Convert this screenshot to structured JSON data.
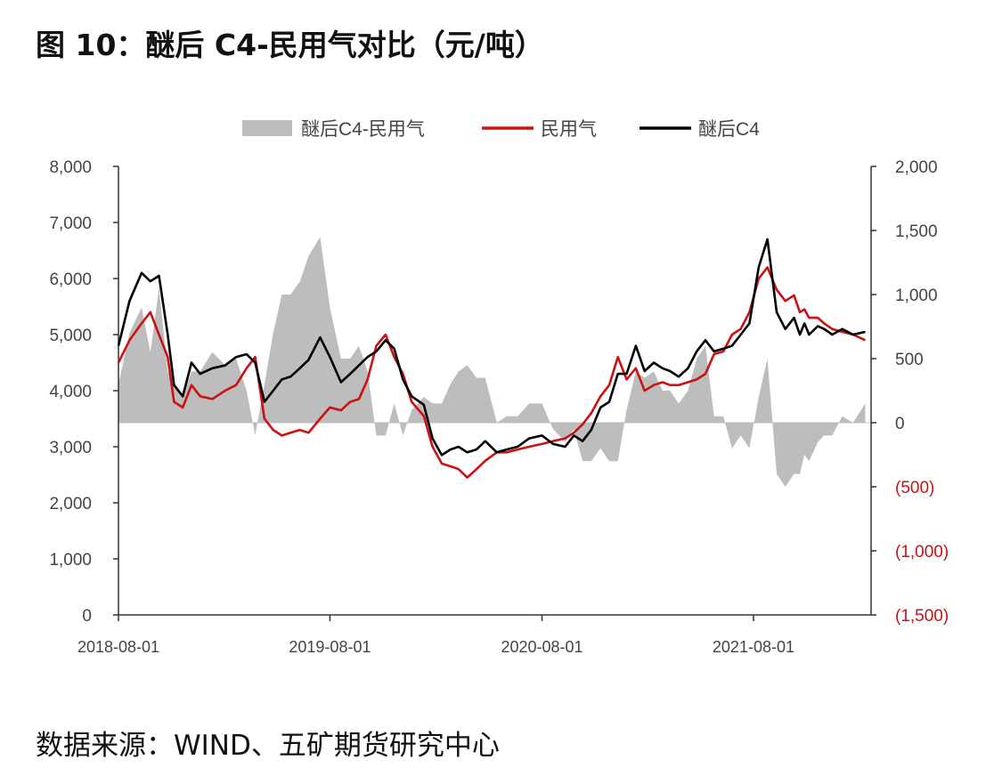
{
  "figure": {
    "title": "图 10：醚后 C4-民用气对比（元/吨）",
    "source": "数据来源：WIND、五矿期货研究中心"
  },
  "chart_data": {
    "type": "line",
    "left_axis": {
      "range": [
        0,
        8000
      ],
      "ticks": [
        "0",
        "1,000",
        "2,000",
        "3,000",
        "4,000",
        "5,000",
        "6,000",
        "7,000",
        "8,000"
      ]
    },
    "right_axis": {
      "range": [
        -1500,
        2000
      ],
      "ticks": [
        "(1,500)",
        "(1,000)",
        "(500)",
        "0",
        "500",
        "1,000",
        "1,500",
        "2,000"
      ],
      "negative_tick_color": "#cc1111"
    },
    "x_axis": {
      "range": [
        "2018-08-01",
        "2022-02-20"
      ],
      "ticks": [
        "2018-08-01",
        "2019-08-01",
        "2020-08-01",
        "2021-08-01"
      ]
    },
    "legend": {
      "position": "top",
      "items": [
        {
          "label": "醚后C4-民用气",
          "type": "area",
          "color": "#bdbdbd"
        },
        {
          "label": "民用气",
          "type": "line",
          "color": "#cc1111"
        },
        {
          "label": "醚后C4",
          "type": "line",
          "color": "#000000"
        }
      ]
    },
    "series": [
      {
        "name": "醚后C4",
        "axis": "left",
        "color": "#000000",
        "x": [
          "2018-08-01",
          "2018-08-20",
          "2018-09-10",
          "2018-09-25",
          "2018-10-10",
          "2018-10-25",
          "2018-11-05",
          "2018-11-20",
          "2018-12-05",
          "2018-12-20",
          "2019-01-10",
          "2019-02-01",
          "2019-02-20",
          "2019-03-10",
          "2019-03-25",
          "2019-04-10",
          "2019-04-25",
          "2019-05-10",
          "2019-05-25",
          "2019-06-10",
          "2019-06-25",
          "2019-07-15",
          "2019-08-01",
          "2019-08-20",
          "2019-09-05",
          "2019-09-20",
          "2019-10-05",
          "2019-10-20",
          "2019-11-05",
          "2019-11-20",
          "2019-12-05",
          "2019-12-20",
          "2020-01-10",
          "2020-01-25",
          "2020-02-10",
          "2020-02-25",
          "2020-03-10",
          "2020-03-25",
          "2020-04-10",
          "2020-04-25",
          "2020-05-15",
          "2020-06-01",
          "2020-06-20",
          "2020-07-10",
          "2020-08-01",
          "2020-08-20",
          "2020-09-10",
          "2020-09-25",
          "2020-10-10",
          "2020-10-25",
          "2020-11-10",
          "2020-11-25",
          "2020-12-10",
          "2020-12-25",
          "2021-01-10",
          "2021-01-25",
          "2021-02-10",
          "2021-02-25",
          "2021-03-10",
          "2021-03-25",
          "2021-04-10",
          "2021-04-25",
          "2021-05-10",
          "2021-05-25",
          "2021-06-10",
          "2021-06-25",
          "2021-07-10",
          "2021-07-25",
          "2021-08-10",
          "2021-08-25",
          "2021-09-10",
          "2021-09-25",
          "2021-10-10",
          "2021-10-20",
          "2021-10-28",
          "2021-11-05",
          "2021-11-20",
          "2021-12-01",
          "2021-12-15",
          "2022-01-01",
          "2022-01-20",
          "2022-02-10"
        ],
        "values": [
          4800,
          5600,
          6100,
          5950,
          6050,
          5000,
          4100,
          3900,
          4500,
          4300,
          4400,
          4450,
          4600,
          4650,
          4500,
          3800,
          4000,
          4200,
          4250,
          4400,
          4550,
          4950,
          4600,
          4150,
          4300,
          4450,
          4600,
          4700,
          4900,
          4750,
          4200,
          3900,
          3750,
          3150,
          2850,
          2950,
          3000,
          2900,
          2950,
          3100,
          2900,
          2950,
          3000,
          3150,
          3200,
          3050,
          3000,
          3200,
          3100,
          3300,
          3700,
          3800,
          4300,
          4300,
          4800,
          4350,
          4500,
          4400,
          4350,
          4250,
          4400,
          4700,
          4900,
          4700,
          4750,
          4800,
          5000,
          5200,
          6200,
          6700,
          5400,
          5100,
          5300,
          5000,
          5200,
          5000,
          5150,
          5100,
          5000,
          5100,
          5000,
          5050
        ]
      },
      {
        "name": "民用气",
        "axis": "left",
        "color": "#cc1111",
        "x": [
          "2018-08-01",
          "2018-08-20",
          "2018-09-10",
          "2018-09-25",
          "2018-10-10",
          "2018-10-25",
          "2018-11-05",
          "2018-11-20",
          "2018-12-05",
          "2018-12-20",
          "2019-01-10",
          "2019-02-01",
          "2019-02-20",
          "2019-03-10",
          "2019-03-25",
          "2019-04-10",
          "2019-04-25",
          "2019-05-10",
          "2019-05-25",
          "2019-06-10",
          "2019-06-25",
          "2019-07-15",
          "2019-08-01",
          "2019-08-20",
          "2019-09-05",
          "2019-09-20",
          "2019-10-05",
          "2019-10-20",
          "2019-11-05",
          "2019-11-20",
          "2019-12-05",
          "2019-12-20",
          "2020-01-10",
          "2020-01-25",
          "2020-02-10",
          "2020-02-25",
          "2020-03-10",
          "2020-03-25",
          "2020-04-10",
          "2020-04-25",
          "2020-05-15",
          "2020-06-01",
          "2020-06-20",
          "2020-07-10",
          "2020-08-01",
          "2020-08-20",
          "2020-09-10",
          "2020-09-25",
          "2020-10-10",
          "2020-10-25",
          "2020-11-10",
          "2020-11-25",
          "2020-12-10",
          "2020-12-25",
          "2021-01-10",
          "2021-01-25",
          "2021-02-10",
          "2021-02-25",
          "2021-03-10",
          "2021-03-25",
          "2021-04-10",
          "2021-04-25",
          "2021-05-10",
          "2021-05-25",
          "2021-06-10",
          "2021-06-25",
          "2021-07-10",
          "2021-07-25",
          "2021-08-10",
          "2021-08-25",
          "2021-09-10",
          "2021-09-25",
          "2021-10-10",
          "2021-10-20",
          "2021-10-28",
          "2021-11-05",
          "2021-11-20",
          "2021-12-01",
          "2021-12-15",
          "2022-01-01",
          "2022-01-20",
          "2022-02-10"
        ],
        "values": [
          4500,
          4900,
          5200,
          5400,
          5000,
          4600,
          3800,
          3700,
          4100,
          3900,
          3850,
          4000,
          4100,
          4400,
          4600,
          3500,
          3300,
          3200,
          3250,
          3300,
          3250,
          3500,
          3700,
          3650,
          3800,
          3850,
          4200,
          4800,
          5000,
          4600,
          4300,
          3800,
          3550,
          3000,
          2700,
          2650,
          2600,
          2450,
          2600,
          2750,
          2900,
          2900,
          2950,
          3000,
          3050,
          3100,
          3150,
          3250,
          3400,
          3600,
          3900,
          4100,
          4600,
          4200,
          4400,
          4000,
          4100,
          4150,
          4100,
          4100,
          4150,
          4200,
          4300,
          4650,
          4700,
          5000,
          5100,
          5400,
          6000,
          6200,
          5800,
          5600,
          5700,
          5400,
          5450,
          5300,
          5300,
          5200,
          5100,
          5050,
          5000,
          4900
        ]
      },
      {
        "name": "醚后C4-民用气",
        "axis": "right",
        "color": "#bdbdbd",
        "x": [
          "2018-08-01",
          "2018-08-20",
          "2018-09-10",
          "2018-09-25",
          "2018-10-10",
          "2018-10-25",
          "2018-11-05",
          "2018-11-20",
          "2018-12-05",
          "2018-12-20",
          "2019-01-10",
          "2019-02-01",
          "2019-02-20",
          "2019-03-10",
          "2019-03-25",
          "2019-04-10",
          "2019-04-25",
          "2019-05-10",
          "2019-05-25",
          "2019-06-10",
          "2019-06-25",
          "2019-07-15",
          "2019-08-01",
          "2019-08-20",
          "2019-09-05",
          "2019-09-20",
          "2019-10-05",
          "2019-10-20",
          "2019-11-05",
          "2019-11-20",
          "2019-12-05",
          "2019-12-20",
          "2020-01-10",
          "2020-01-25",
          "2020-02-10",
          "2020-02-25",
          "2020-03-10",
          "2020-03-25",
          "2020-04-10",
          "2020-04-25",
          "2020-05-15",
          "2020-06-01",
          "2020-06-20",
          "2020-07-10",
          "2020-08-01",
          "2020-08-20",
          "2020-09-10",
          "2020-09-25",
          "2020-10-10",
          "2020-10-25",
          "2020-11-10",
          "2020-11-25",
          "2020-12-10",
          "2020-12-25",
          "2021-01-10",
          "2021-01-25",
          "2021-02-10",
          "2021-02-25",
          "2021-03-10",
          "2021-03-25",
          "2021-04-10",
          "2021-04-25",
          "2021-05-10",
          "2021-05-25",
          "2021-06-10",
          "2021-06-25",
          "2021-07-10",
          "2021-07-25",
          "2021-08-10",
          "2021-08-25",
          "2021-09-10",
          "2021-09-25",
          "2021-10-10",
          "2021-10-20",
          "2021-10-28",
          "2021-11-05",
          "2021-11-20",
          "2021-12-01",
          "2021-12-15",
          "2022-01-01",
          "2022-01-20",
          "2022-02-10"
        ],
        "values": [
          300,
          700,
          900,
          550,
          1050,
          400,
          300,
          200,
          400,
          400,
          550,
          450,
          500,
          250,
          -100,
          300,
          700,
          1000,
          1000,
          1100,
          1300,
          1450,
          900,
          500,
          500,
          600,
          400,
          -100,
          -100,
          150,
          -100,
          100,
          200,
          150,
          150,
          300,
          400,
          450,
          350,
          350,
          0,
          50,
          50,
          150,
          150,
          -50,
          -150,
          -50,
          -300,
          -300,
          -200,
          -300,
          -300,
          100,
          400,
          350,
          400,
          250,
          250,
          150,
          250,
          500,
          600,
          50,
          50,
          -200,
          -100,
          -200,
          200,
          500,
          -400,
          -500,
          -400,
          -400,
          -250,
          -300,
          -150,
          -100,
          -100,
          50,
          0,
          150
        ]
      }
    ]
  }
}
